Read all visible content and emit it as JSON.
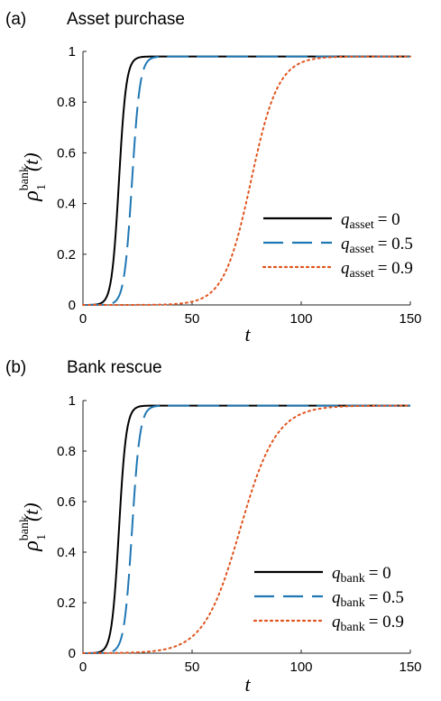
{
  "chart_data": [
    {
      "type": "line",
      "panel_label": "(a)",
      "title": "Asset purchase",
      "xlabel": "t",
      "ylabel": {
        "base": "ρ",
        "sup": "bank",
        "sub": "1",
        "arg": "(t)"
      },
      "xlim": [
        0,
        150
      ],
      "ylim": [
        0,
        1
      ],
      "xticks": [
        "0",
        "50",
        "100",
        "150"
      ],
      "yticks": [
        "0",
        "0.2",
        "0.4",
        "0.6",
        "0.8",
        "1"
      ],
      "grid": false,
      "legend_position": "lower-right",
      "series": [
        {
          "name": "q_asset = 0",
          "legend": {
            "var": "q",
            "sub": "asset",
            "val": "= 0"
          },
          "style": "solid",
          "color": "#000000",
          "midpoint": 16.5,
          "k": 0.6,
          "ymax": 0.98
        },
        {
          "name": "q_asset = 0.5",
          "legend": {
            "var": "q",
            "sub": "asset",
            "val": "= 0.5"
          },
          "style": "dashed",
          "color": "#1f77b4",
          "midpoint": 22.5,
          "k": 0.55,
          "ymax": 0.98
        },
        {
          "name": "q_asset = 0.9",
          "legend": {
            "var": "q",
            "sub": "asset",
            "val": "= 0.9"
          },
          "style": "dotted",
          "color": "#e0541e",
          "midpoint": 77,
          "k": 0.16,
          "ymax": 0.98
        }
      ]
    },
    {
      "type": "line",
      "panel_label": "(b)",
      "title": "Bank rescue",
      "xlabel": "t",
      "ylabel": {
        "base": "ρ",
        "sup": "bank",
        "sub": "1",
        "arg": "(t)"
      },
      "xlim": [
        0,
        150
      ],
      "ylim": [
        0,
        1
      ],
      "xticks": [
        "0",
        "50",
        "100",
        "150"
      ],
      "yticks": [
        "0",
        "0.2",
        "0.4",
        "0.6",
        "0.8",
        "1"
      ],
      "grid": false,
      "legend_position": "lower-right",
      "series": [
        {
          "name": "q_bank = 0",
          "legend": {
            "var": "q",
            "sub": "bank",
            "val": "= 0"
          },
          "style": "solid",
          "color": "#000000",
          "midpoint": 16.5,
          "k": 0.6,
          "ymax": 0.98
        },
        {
          "name": "q_bank = 0.5",
          "legend": {
            "var": "q",
            "sub": "bank",
            "val": "= 0.5"
          },
          "style": "dashed",
          "color": "#1f77b4",
          "midpoint": 22.5,
          "k": 0.55,
          "ymax": 0.98
        },
        {
          "name": "q_bank = 0.9",
          "legend": {
            "var": "q",
            "sub": "bank",
            "val": "= 0.9"
          },
          "style": "dotted",
          "color": "#e0541e",
          "midpoint": 72,
          "k": 0.12,
          "ymax": 0.98
        }
      ]
    }
  ]
}
